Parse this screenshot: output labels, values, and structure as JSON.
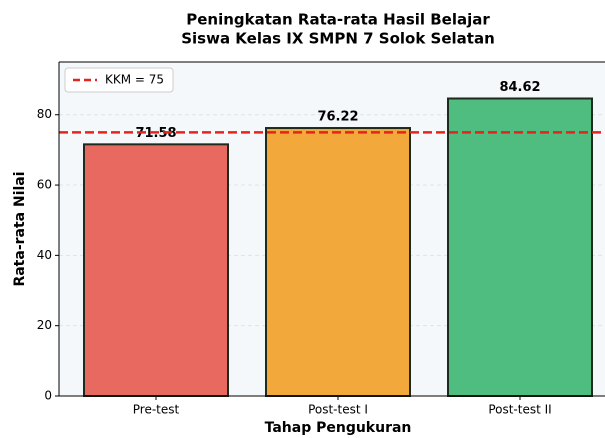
{
  "chart_data": {
    "type": "bar",
    "title": [
      "Peningkatan Rata-rata Hasil Belajar",
      "Siswa Kelas IX SMPN 7 Solok Selatan"
    ],
    "x_label": "Tahap Pengukuran",
    "y_label": "Rata-rata Nilai",
    "categories": [
      "Pre-test",
      "Post-test I",
      "Post-test II"
    ],
    "values": [
      71.58,
      76.22,
      84.62
    ],
    "colors": [
      "#e8695f",
      "#f3a83b",
      "#4fbd7f"
    ],
    "ylim": [
      0,
      95
    ],
    "yticks": [
      0,
      20,
      40,
      60,
      80
    ],
    "grid": true,
    "reference_line": {
      "value": 75,
      "label": "KKM = 75",
      "color": "#e3241c"
    },
    "legend": "upper left"
  }
}
